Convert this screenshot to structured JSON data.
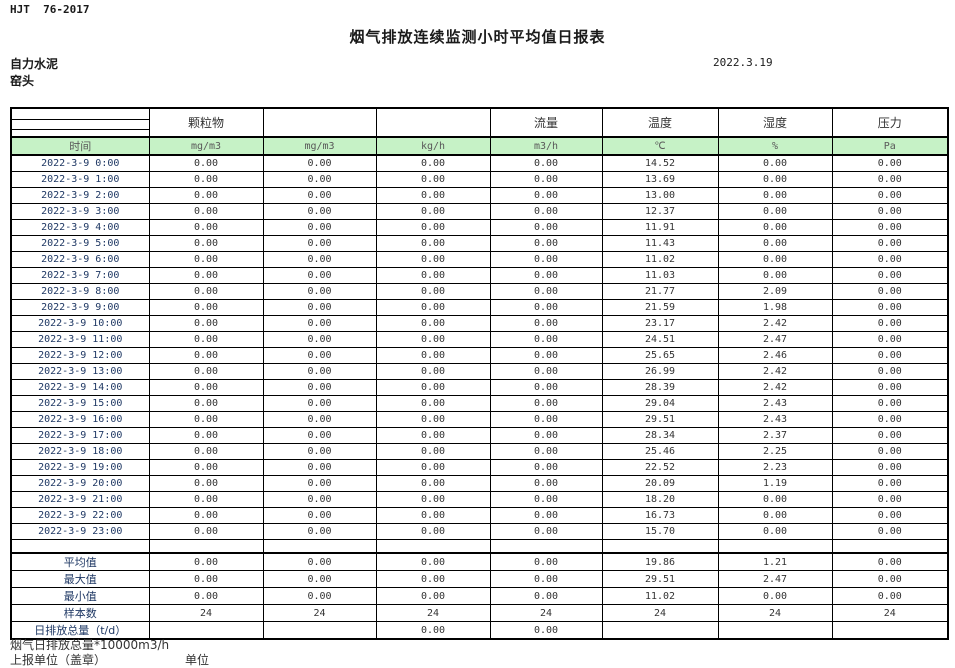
{
  "page": {
    "doc_code": "HJT  76-2017",
    "title": "烟气排放连续监测小时平均值日报表",
    "company": "自力水泥",
    "station": "窑头",
    "report_date": "2022.3.19"
  },
  "table": {
    "group_headers": [
      "",
      "颗粒物",
      "",
      "",
      "流量",
      "温度",
      "湿度",
      "压力"
    ],
    "columns": [
      "时间",
      "mg/m3",
      "mg/m3",
      "kg/h",
      "m3/h",
      "℃",
      "%",
      "Pa"
    ],
    "rows": [
      [
        "2022-3-9 0:00",
        "0.00",
        "0.00",
        "0.00",
        "0.00",
        "14.52",
        "0.00",
        "0.00"
      ],
      [
        "2022-3-9 1:00",
        "0.00",
        "0.00",
        "0.00",
        "0.00",
        "13.69",
        "0.00",
        "0.00"
      ],
      [
        "2022-3-9 2:00",
        "0.00",
        "0.00",
        "0.00",
        "0.00",
        "13.00",
        "0.00",
        "0.00"
      ],
      [
        "2022-3-9 3:00",
        "0.00",
        "0.00",
        "0.00",
        "0.00",
        "12.37",
        "0.00",
        "0.00"
      ],
      [
        "2022-3-9 4:00",
        "0.00",
        "0.00",
        "0.00",
        "0.00",
        "11.91",
        "0.00",
        "0.00"
      ],
      [
        "2022-3-9 5:00",
        "0.00",
        "0.00",
        "0.00",
        "0.00",
        "11.43",
        "0.00",
        "0.00"
      ],
      [
        "2022-3-9 6:00",
        "0.00",
        "0.00",
        "0.00",
        "0.00",
        "11.02",
        "0.00",
        "0.00"
      ],
      [
        "2022-3-9 7:00",
        "0.00",
        "0.00",
        "0.00",
        "0.00",
        "11.03",
        "0.00",
        "0.00"
      ],
      [
        "2022-3-9 8:00",
        "0.00",
        "0.00",
        "0.00",
        "0.00",
        "21.77",
        "2.09",
        "0.00"
      ],
      [
        "2022-3-9 9:00",
        "0.00",
        "0.00",
        "0.00",
        "0.00",
        "21.59",
        "1.98",
        "0.00"
      ],
      [
        "2022-3-9 10:00",
        "0.00",
        "0.00",
        "0.00",
        "0.00",
        "23.17",
        "2.42",
        "0.00"
      ],
      [
        "2022-3-9 11:00",
        "0.00",
        "0.00",
        "0.00",
        "0.00",
        "24.51",
        "2.47",
        "0.00"
      ],
      [
        "2022-3-9 12:00",
        "0.00",
        "0.00",
        "0.00",
        "0.00",
        "25.65",
        "2.46",
        "0.00"
      ],
      [
        "2022-3-9 13:00",
        "0.00",
        "0.00",
        "0.00",
        "0.00",
        "26.99",
        "2.42",
        "0.00"
      ],
      [
        "2022-3-9 14:00",
        "0.00",
        "0.00",
        "0.00",
        "0.00",
        "28.39",
        "2.42",
        "0.00"
      ],
      [
        "2022-3-9 15:00",
        "0.00",
        "0.00",
        "0.00",
        "0.00",
        "29.04",
        "2.43",
        "0.00"
      ],
      [
        "2022-3-9 16:00",
        "0.00",
        "0.00",
        "0.00",
        "0.00",
        "29.51",
        "2.43",
        "0.00"
      ],
      [
        "2022-3-9 17:00",
        "0.00",
        "0.00",
        "0.00",
        "0.00",
        "28.34",
        "2.37",
        "0.00"
      ],
      [
        "2022-3-9 18:00",
        "0.00",
        "0.00",
        "0.00",
        "0.00",
        "25.46",
        "2.25",
        "0.00"
      ],
      [
        "2022-3-9 19:00",
        "0.00",
        "0.00",
        "0.00",
        "0.00",
        "22.52",
        "2.23",
        "0.00"
      ],
      [
        "2022-3-9 20:00",
        "0.00",
        "0.00",
        "0.00",
        "0.00",
        "20.09",
        "1.19",
        "0.00"
      ],
      [
        "2022-3-9 21:00",
        "0.00",
        "0.00",
        "0.00",
        "0.00",
        "18.20",
        "0.00",
        "0.00"
      ],
      [
        "2022-3-9 22:00",
        "0.00",
        "0.00",
        "0.00",
        "0.00",
        "16.73",
        "0.00",
        "0.00"
      ],
      [
        "2022-3-9 23:00",
        "0.00",
        "0.00",
        "0.00",
        "0.00",
        "15.70",
        "0.00",
        "0.00"
      ]
    ],
    "summary_rows": [
      [
        "平均值",
        "0.00",
        "0.00",
        "0.00",
        "0.00",
        "19.86",
        "1.21",
        "0.00"
      ],
      [
        "最大值",
        "0.00",
        "0.00",
        "0.00",
        "0.00",
        "29.51",
        "2.47",
        "0.00"
      ],
      [
        "最小值",
        "0.00",
        "0.00",
        "0.00",
        "0.00",
        "11.02",
        "0.00",
        "0.00"
      ],
      [
        "样本数",
        "24",
        "24",
        "24",
        "24",
        "24",
        "24",
        "24"
      ],
      [
        "日排放总量（t/d）",
        "",
        "",
        "0.00",
        "0.00",
        "",
        "",
        ""
      ]
    ]
  },
  "footer": {
    "total_note": "烟气日排放总量*10000m3/h",
    "report_unit_label": "上报单位（盖章）",
    "unit_label": "单位"
  },
  "colors": {
    "units_row_bg": "#c6f2c6",
    "units_text": "#595959",
    "time_text": "#1f3864",
    "value_text": "#333333"
  }
}
